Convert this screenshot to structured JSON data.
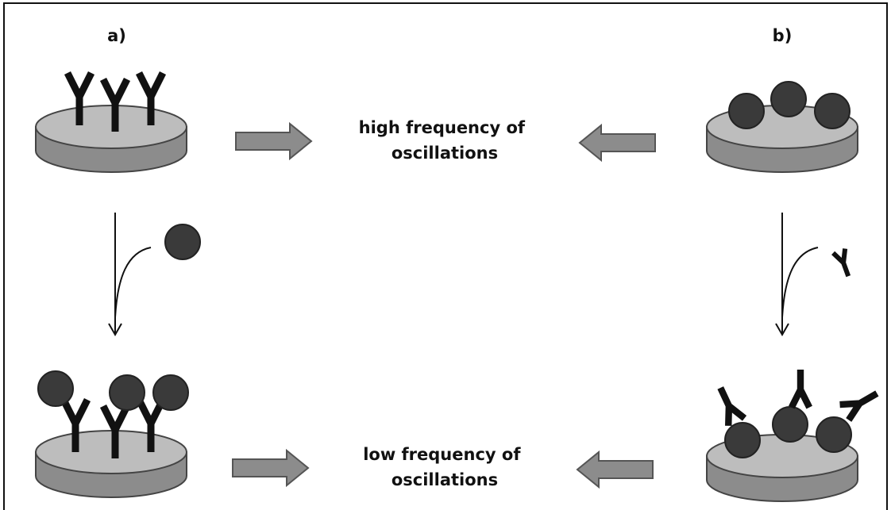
{
  "panels": [
    {
      "label": "a)"
    },
    {
      "label": "b)"
    }
  ],
  "outcomes": {
    "high": [
      "high frequency of",
      "oscillations"
    ],
    "low": [
      "low frequency of",
      "oscillations"
    ]
  }
}
